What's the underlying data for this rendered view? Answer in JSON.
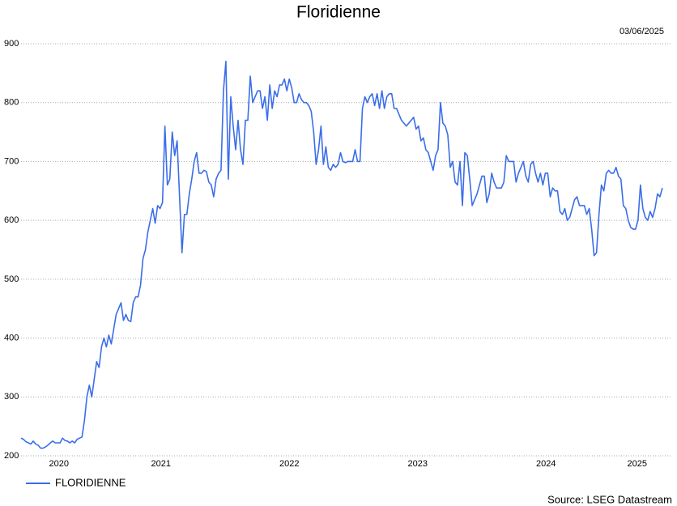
{
  "chart_data": {
    "type": "line",
    "title": "Floridienne",
    "date": "03/06/2025",
    "source": "Source: LSEG Datastream",
    "x": [
      2020.41,
      2020.429,
      2020.448,
      2020.467,
      2020.486,
      2020.505,
      2020.524,
      2020.543,
      2020.562,
      2020.581,
      2020.6,
      2020.619,
      2020.638,
      2020.657,
      2020.676,
      2020.695,
      2020.714,
      2020.733,
      2020.752,
      2020.771,
      2020.79,
      2020.809,
      2020.828,
      2020.847,
      2020.866,
      2020.885,
      2020.904,
      2020.923,
      2020.942,
      2020.961,
      2020.98,
      2020.999,
      2021.018,
      2021.037,
      2021.056,
      2021.075,
      2021.094,
      2021.113,
      2021.132,
      2021.151,
      2021.17,
      2021.189,
      2021.208,
      2021.227,
      2021.246,
      2021.265,
      2021.284,
      2021.303,
      2021.322,
      2021.341,
      2021.36,
      2021.379,
      2021.398,
      2021.417,
      2021.436,
      2021.455,
      2021.474,
      2021.493,
      2021.512,
      2021.531,
      2021.55,
      2021.569,
      2021.588,
      2021.607,
      2021.626,
      2021.645,
      2021.664,
      2021.683,
      2021.702,
      2021.721,
      2021.74,
      2021.759,
      2021.778,
      2021.797,
      2021.816,
      2021.835,
      2021.854,
      2021.873,
      2021.892,
      2021.911,
      2021.93,
      2021.949,
      2021.968,
      2021.987,
      2022.006,
      2022.025,
      2022.044,
      2022.063,
      2022.082,
      2022.101,
      2022.12,
      2022.139,
      2022.158,
      2022.177,
      2022.196,
      2022.215,
      2022.234,
      2022.253,
      2022.272,
      2022.291,
      2022.31,
      2022.329,
      2022.348,
      2022.367,
      2022.386,
      2022.405,
      2022.424,
      2022.443,
      2022.462,
      2022.481,
      2022.5,
      2022.519,
      2022.538,
      2022.557,
      2022.576,
      2022.595,
      2022.614,
      2022.633,
      2022.652,
      2022.671,
      2022.69,
      2022.709,
      2022.728,
      2022.747,
      2022.766,
      2022.785,
      2022.804,
      2022.823,
      2022.842,
      2022.861,
      2022.88,
      2022.899,
      2022.918,
      2022.937,
      2022.956,
      2022.975,
      2022.994,
      2023.013,
      2023.032,
      2023.051,
      2023.07,
      2023.089,
      2023.108,
      2023.127,
      2023.146,
      2023.165,
      2023.184,
      2023.203,
      2023.222,
      2023.241,
      2023.26,
      2023.279,
      2023.298,
      2023.317,
      2023.336,
      2023.355,
      2023.374,
      2023.393,
      2023.412,
      2023.431,
      2023.45,
      2023.469,
      2023.488,
      2023.507,
      2023.526,
      2023.545,
      2023.564,
      2023.583,
      2023.602,
      2023.621,
      2023.64,
      2023.659,
      2023.678,
      2023.697,
      2023.716,
      2023.735,
      2023.754,
      2023.773,
      2023.792,
      2023.811,
      2023.83,
      2023.849,
      2023.868,
      2023.887,
      2023.906,
      2023.925,
      2023.944,
      2023.963,
      2023.982,
      2024.001,
      2024.02,
      2024.039,
      2024.058,
      2024.077,
      2024.096,
      2024.115,
      2024.134,
      2024.153,
      2024.172,
      2024.191,
      2024.21,
      2024.229,
      2024.248,
      2024.267,
      2024.286,
      2024.305,
      2024.324,
      2024.343,
      2024.362,
      2024.381,
      2024.4,
      2024.419,
      2024.438,
      2024.457,
      2024.476,
      2024.495,
      2024.514,
      2024.533,
      2024.552,
      2024.571,
      2024.59,
      2024.609,
      2024.628,
      2024.647,
      2024.666,
      2024.685,
      2024.704,
      2024.723,
      2024.742,
      2024.761,
      2024.78,
      2024.799,
      2024.818,
      2024.837,
      2024.856,
      2024.875,
      2024.894,
      2024.913,
      2024.932,
      2024.951,
      2024.97,
      2024.989,
      2025.008,
      2025.027,
      2025.046,
      2025.065,
      2025.084,
      2025.103,
      2025.122,
      2025.141,
      2025.16,
      2025.179,
      2025.198,
      2025.217,
      2025.236,
      2025.255,
      2025.274,
      2025.293,
      2025.312,
      2025.331,
      2025.35,
      2025.369,
      2025.388,
      2025.407
    ],
    "series": [
      {
        "name": "FLORIDIENNE",
        "color": "#3a6ee8",
        "values": [
          230,
          228,
          224,
          222,
          220,
          225,
          220,
          218,
          213,
          213,
          215,
          218,
          222,
          225,
          222,
          222,
          222,
          230,
          226,
          225,
          222,
          225,
          222,
          228,
          230,
          232,
          260,
          300,
          320,
          300,
          330,
          360,
          350,
          385,
          400,
          385,
          405,
          390,
          415,
          440,
          450,
          460,
          430,
          440,
          430,
          428,
          460,
          470,
          470,
          490,
          535,
          550,
          580,
          600,
          620,
          595,
          625,
          620,
          630,
          760,
          660,
          670,
          750,
          710,
          735,
          640,
          545,
          610,
          610,
          645,
          670,
          700,
          715,
          680,
          680,
          685,
          683,
          665,
          660,
          640,
          670,
          680,
          685,
          820,
          870,
          670,
          810,
          760,
          720,
          770,
          720,
          695,
          770,
          770,
          845,
          800,
          810,
          820,
          820,
          790,
          810,
          770,
          830,
          790,
          820,
          810,
          830,
          830,
          840,
          820,
          840,
          825,
          800,
          800,
          815,
          805,
          800,
          800,
          795,
          785,
          750,
          695,
          720,
          760,
          695,
          725,
          690,
          685,
          695,
          690,
          695,
          715,
          700,
          698,
          700,
          700,
          700,
          720,
          700,
          700,
          790,
          810,
          800,
          810,
          815,
          795,
          815,
          790,
          820,
          790,
          810,
          815,
          815,
          790,
          790,
          780,
          770,
          765,
          760,
          765,
          770,
          775,
          755,
          760,
          735,
          740,
          720,
          715,
          700,
          685,
          710,
          720,
          800,
          765,
          760,
          745,
          690,
          700,
          665,
          660,
          700,
          625,
          715,
          710,
          670,
          625,
          635,
          645,
          660,
          675,
          675,
          630,
          645,
          680,
          665,
          655,
          655,
          655,
          665,
          710,
          700,
          700,
          700,
          665,
          680,
          690,
          700,
          675,
          665,
          695,
          700,
          680,
          665,
          680,
          660,
          680,
          680,
          640,
          655,
          650,
          650,
          615,
          610,
          620,
          600,
          605,
          620,
          635,
          640,
          625,
          625,
          625,
          610,
          620,
          585,
          540,
          545,
          610,
          660,
          650,
          680,
          685,
          680,
          680,
          690,
          675,
          670,
          625,
          620,
          600,
          588,
          585,
          585,
          600,
          660,
          620,
          605,
          600,
          615,
          605,
          620,
          645,
          640,
          655
        ]
      }
    ],
    "xlim": [
      2020.41,
      2025.42
    ],
    "xticks": [
      2020,
      2021,
      2022,
      2023,
      2024,
      2025
    ],
    "ylim": [
      200,
      900
    ],
    "yticks": [
      200,
      300,
      400,
      500,
      600,
      700,
      800,
      900
    ],
    "grid": true
  }
}
